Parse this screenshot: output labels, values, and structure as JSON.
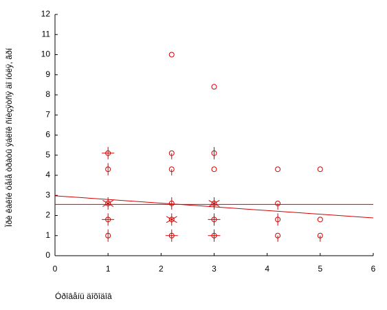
{
  "chart_data": {
    "type": "scatter",
    "x_label": "Óðîâåíü äîõîäîâ",
    "y_label": "Ïðè êàêîé öåíå òðàòû ÿáëîê ñíèçÿòñÿ äî íóëÿ, ãðí",
    "xlim": [
      0,
      6
    ],
    "xticks": [
      0,
      1,
      2,
      3,
      4,
      5,
      6
    ],
    "ylim": [
      0,
      12
    ],
    "yticks": [
      0,
      1,
      2,
      3,
      4,
      5,
      6,
      7,
      8,
      9,
      10,
      11,
      12
    ],
    "series": [
      {
        "color": "#d00000",
        "x": [
          1,
          1,
          1,
          1,
          1,
          2.2,
          2.2,
          2.2,
          2.2,
          2.2,
          2.2,
          3,
          3,
          3,
          3,
          3,
          3,
          4.2,
          4.2,
          4.2,
          4.2,
          5,
          5,
          5
        ],
        "values": [
          1.0,
          1.8,
          2.6,
          4.3,
          5.1,
          1.0,
          1.8,
          2.6,
          4.3,
          5.1,
          10.0,
          1.0,
          1.8,
          2.6,
          4.3,
          5.1,
          8.4,
          1.0,
          1.8,
          2.6,
          4.3,
          1.0,
          1.8,
          4.3
        ],
        "sizes": [
          2,
          4,
          6,
          2,
          4,
          4,
          6,
          2,
          1,
          1,
          0,
          4,
          4,
          6,
          0,
          2,
          0,
          1,
          2,
          1,
          0,
          1,
          0,
          0
        ]
      }
    ],
    "fit_lines": [
      {
        "color": "#d00000",
        "x": [
          0,
          6
        ],
        "values": [
          2.55,
          2.55
        ]
      },
      {
        "color": "#d00000",
        "x": [
          0,
          6
        ],
        "values": [
          2.98,
          1.88
        ]
      }
    ]
  }
}
